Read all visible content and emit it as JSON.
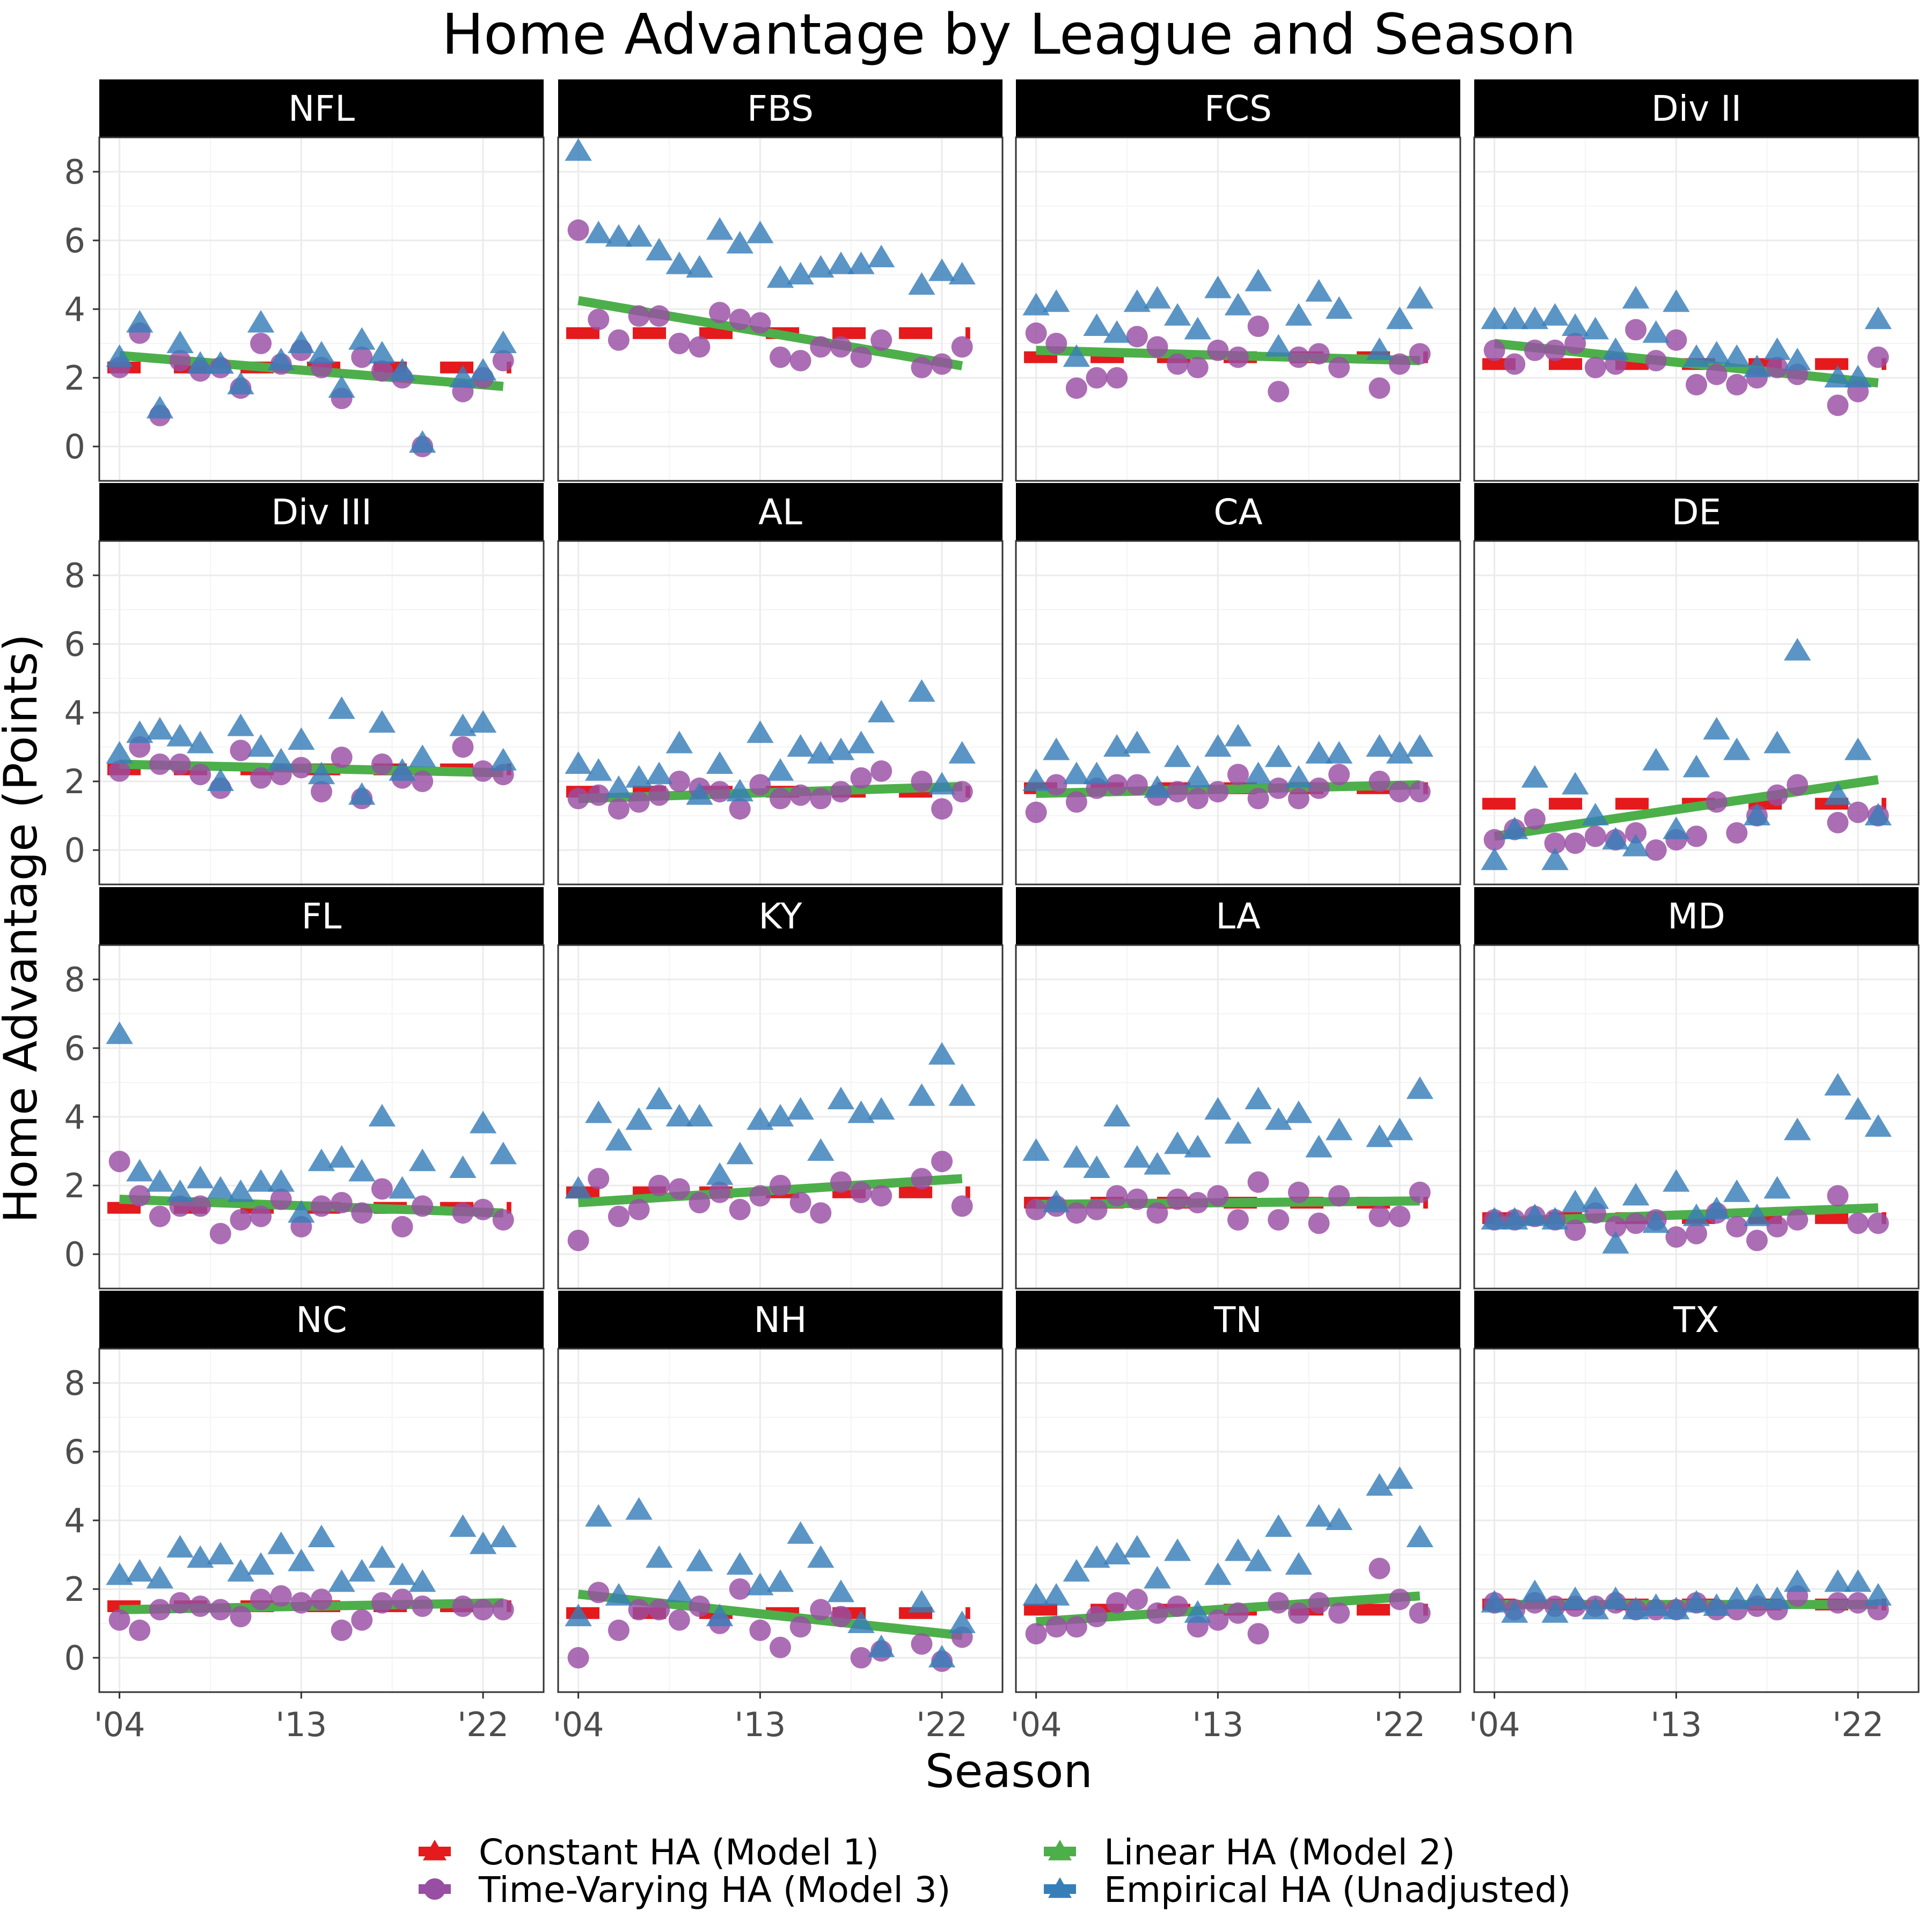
{
  "chart_data": {
    "type": "scatter",
    "title": "Home Advantage by League and Season",
    "xlabel": "Season",
    "ylabel": "Home Advantage (Points)",
    "x_range": [
      2003,
      2025
    ],
    "x_ticks": [
      {
        "value": 2004,
        "label": "'04"
      },
      {
        "value": 2013,
        "label": "'13"
      },
      {
        "value": 2022,
        "label": "'22"
      }
    ],
    "y_range": [
      -1,
      9
    ],
    "y_ticks": [
      0,
      2,
      4,
      6,
      8
    ],
    "grid": true,
    "facet_layout": "4x4",
    "legend_position": "bottom",
    "series": [
      {
        "key": "constant",
        "name": "Constant HA (Model 1)",
        "color": "#e41a1c",
        "shape": "dashed-line"
      },
      {
        "key": "linear",
        "name": "Linear HA (Model 2)",
        "color": "#4daf4a",
        "shape": "line"
      },
      {
        "key": "timevarying",
        "name": "Time-Varying HA (Model 3)",
        "color": "#984ea3",
        "shape": "circle"
      },
      {
        "key": "empirical",
        "name": "Empirical HA (Unadjusted)",
        "color": "#377eb8",
        "shape": "triangle"
      }
    ],
    "seasons": [
      2004,
      2005,
      2006,
      2007,
      2008,
      2009,
      2010,
      2011,
      2012,
      2013,
      2014,
      2015,
      2016,
      2017,
      2018,
      2019,
      2021,
      2022,
      2023
    ],
    "panels": [
      {
        "name": "NFL",
        "constant": 2.3,
        "linear": [
          2.65,
          1.75
        ],
        "timevarying": [
          2.3,
          3.3,
          0.9,
          2.5,
          2.2,
          2.3,
          1.7,
          3.0,
          2.4,
          2.8,
          2.3,
          1.4,
          2.6,
          2.2,
          2.0,
          0.0,
          1.6,
          2.0,
          2.5
        ],
        "empirical": [
          2.6,
          3.6,
          1.1,
          3.0,
          2.4,
          2.4,
          1.8,
          3.6,
          2.5,
          3.0,
          2.7,
          1.7,
          3.1,
          2.7,
          2.2,
          0.1,
          2.0,
          2.2,
          3.0
        ]
      },
      {
        "name": "FBS",
        "constant": 3.3,
        "linear": [
          4.25,
          2.35
        ],
        "timevarying": [
          6.3,
          3.7,
          3.1,
          3.8,
          3.8,
          3.0,
          2.9,
          3.9,
          3.7,
          3.6,
          2.6,
          2.5,
          2.9,
          2.9,
          2.6,
          3.1,
          2.3,
          2.4,
          2.9
        ],
        "empirical": [
          8.6,
          6.2,
          6.1,
          6.1,
          5.7,
          5.3,
          5.2,
          6.3,
          5.9,
          6.2,
          4.9,
          5.0,
          5.2,
          5.3,
          5.3,
          5.5,
          4.7,
          5.1,
          5.0
        ]
      },
      {
        "name": "FCS",
        "constant": 2.6,
        "linear": [
          2.8,
          2.5
        ],
        "timevarying": [
          3.3,
          3.0,
          1.7,
          2.0,
          2.0,
          3.2,
          2.9,
          2.4,
          2.3,
          2.8,
          2.6,
          3.5,
          1.6,
          2.6,
          2.7,
          2.3,
          1.7,
          2.4,
          2.7
        ],
        "empirical": [
          4.1,
          4.2,
          2.6,
          3.5,
          3.3,
          4.2,
          4.3,
          3.8,
          3.4,
          4.6,
          4.1,
          4.8,
          2.9,
          3.8,
          4.5,
          4.0,
          2.8,
          3.7,
          4.3
        ]
      },
      {
        "name": "Div II",
        "constant": 2.4,
        "linear": [
          3.0,
          1.85
        ],
        "timevarying": [
          2.8,
          2.4,
          2.8,
          2.8,
          3.0,
          2.3,
          2.4,
          3.4,
          2.5,
          3.1,
          1.8,
          2.1,
          1.8,
          2.0,
          2.3,
          2.1,
          1.2,
          1.6,
          2.6
        ],
        "empirical": [
          3.7,
          3.7,
          3.7,
          3.8,
          3.5,
          3.4,
          2.8,
          4.3,
          3.3,
          4.2,
          2.6,
          2.7,
          2.6,
          2.3,
          2.8,
          2.5,
          2.0,
          2.0,
          3.7
        ]
      },
      {
        "name": "Div III",
        "constant": 2.35,
        "linear": [
          2.5,
          2.25
        ],
        "timevarying": [
          2.3,
          3.0,
          2.5,
          2.5,
          2.2,
          1.8,
          2.9,
          2.1,
          2.2,
          2.4,
          1.7,
          2.7,
          1.5,
          2.5,
          2.1,
          2.0,
          3.0,
          2.3,
          2.2
        ],
        "empirical": [
          2.8,
          3.4,
          3.5,
          3.3,
          3.1,
          2.0,
          3.6,
          3.0,
          2.6,
          3.2,
          2.2,
          4.1,
          1.6,
          3.7,
          2.3,
          2.7,
          3.6,
          3.7,
          2.6
        ]
      },
      {
        "name": "AL",
        "constant": 1.7,
        "linear": [
          1.5,
          1.85
        ],
        "timevarying": [
          1.5,
          1.6,
          1.2,
          1.4,
          1.6,
          2.0,
          1.8,
          1.7,
          1.2,
          1.9,
          1.5,
          1.6,
          1.5,
          1.7,
          2.1,
          2.3,
          2.0,
          1.2,
          1.7
        ],
        "empirical": [
          2.5,
          2.3,
          1.8,
          2.1,
          2.2,
          3.1,
          1.6,
          2.5,
          1.7,
          3.4,
          2.3,
          3.0,
          2.8,
          2.9,
          3.1,
          4.0,
          4.6,
          1.9,
          2.8
        ]
      },
      {
        "name": "CA",
        "constant": 1.8,
        "linear": [
          1.65,
          1.9
        ],
        "timevarying": [
          1.1,
          1.9,
          1.4,
          1.8,
          1.9,
          1.9,
          1.6,
          1.7,
          1.5,
          1.7,
          2.2,
          1.5,
          1.8,
          1.5,
          1.8,
          2.2,
          2.0,
          1.7,
          1.7
        ],
        "empirical": [
          2.0,
          2.9,
          2.2,
          2.2,
          3.0,
          3.1,
          1.8,
          2.7,
          2.1,
          3.0,
          3.3,
          2.2,
          2.7,
          2.1,
          2.8,
          2.8,
          3.0,
          2.8,
          3.0
        ]
      },
      {
        "name": "DE",
        "constant": 1.35,
        "linear": [
          0.4,
          2.05
        ],
        "timevarying": [
          0.3,
          0.6,
          0.9,
          0.2,
          0.2,
          0.4,
          0.3,
          0.5,
          0.0,
          0.3,
          0.4,
          1.4,
          0.5,
          1.0,
          1.6,
          1.9,
          0.8,
          1.1,
          1.0
        ],
        "empirical": [
          -0.3,
          0.6,
          2.1,
          -0.3,
          1.9,
          1.0,
          0.3,
          0.1,
          2.6,
          0.6,
          2.4,
          3.5,
          2.9,
          1.0,
          3.1,
          5.8,
          1.6,
          2.9,
          1.0
        ]
      },
      {
        "name": "FL",
        "constant": 1.35,
        "linear": [
          1.6,
          1.2
        ],
        "timevarying": [
          2.7,
          1.7,
          1.1,
          1.4,
          1.4,
          0.6,
          1.0,
          1.1,
          1.6,
          0.8,
          1.4,
          1.5,
          1.2,
          1.9,
          0.8,
          1.4,
          1.2,
          1.3,
          1.0
        ],
        "empirical": [
          6.4,
          2.4,
          2.1,
          1.8,
          2.2,
          1.9,
          1.8,
          2.1,
          2.1,
          1.2,
          2.7,
          2.8,
          2.4,
          4.0,
          1.9,
          2.7,
          2.5,
          3.8,
          2.9
        ]
      },
      {
        "name": "KY",
        "constant": 1.8,
        "linear": [
          1.5,
          2.2
        ],
        "timevarying": [
          0.4,
          2.2,
          1.1,
          1.3,
          2.0,
          1.9,
          1.5,
          1.8,
          1.3,
          1.7,
          2.0,
          1.5,
          1.2,
          2.1,
          1.8,
          1.7,
          2.2,
          2.7,
          1.4
        ],
        "empirical": [
          1.9,
          4.1,
          3.3,
          3.9,
          4.5,
          4.0,
          4.0,
          2.3,
          2.9,
          3.9,
          4.0,
          4.2,
          3.0,
          4.5,
          4.1,
          4.2,
          4.6,
          5.8,
          4.6
        ]
      },
      {
        "name": "LA",
        "constant": 1.5,
        "linear": [
          1.45,
          1.55
        ],
        "timevarying": [
          1.3,
          1.4,
          1.2,
          1.3,
          1.7,
          1.6,
          1.2,
          1.6,
          1.5,
          1.7,
          1.0,
          2.1,
          1.0,
          1.8,
          0.9,
          1.7,
          1.1,
          1.1,
          1.8
        ],
        "empirical": [
          3.0,
          1.5,
          2.8,
          2.5,
          4.0,
          2.8,
          2.6,
          3.2,
          3.1,
          4.2,
          3.5,
          4.5,
          3.9,
          4.1,
          3.1,
          3.6,
          3.4,
          3.6,
          4.8
        ]
      },
      {
        "name": "MD",
        "constant": 1.05,
        "linear": [
          0.95,
          1.35
        ],
        "timevarying": [
          1.0,
          1.0,
          1.1,
          1.0,
          0.7,
          1.2,
          0.8,
          0.9,
          1.0,
          0.5,
          0.6,
          1.2,
          0.8,
          0.4,
          0.8,
          1.0,
          1.7,
          0.9,
          0.9
        ],
        "empirical": [
          1.0,
          1.0,
          1.1,
          1.0,
          1.5,
          1.6,
          0.3,
          1.7,
          0.9,
          2.1,
          1.1,
          1.3,
          1.8,
          1.1,
          1.9,
          3.6,
          4.9,
          4.2,
          3.7
        ]
      },
      {
        "name": "NC",
        "constant": 1.5,
        "linear": [
          1.4,
          1.6
        ],
        "timevarying": [
          1.1,
          0.8,
          1.4,
          1.6,
          1.5,
          1.4,
          1.2,
          1.7,
          1.8,
          1.6,
          1.7,
          0.8,
          1.1,
          1.6,
          1.7,
          1.5,
          1.5,
          1.4,
          1.4
        ],
        "empirical": [
          2.4,
          2.5,
          2.3,
          3.2,
          2.9,
          3.0,
          2.5,
          2.7,
          3.3,
          2.8,
          3.5,
          2.2,
          2.5,
          2.9,
          2.4,
          2.2,
          3.8,
          3.3,
          3.5
        ]
      },
      {
        "name": "NH",
        "constant": 1.3,
        "linear": [
          1.85,
          0.65
        ],
        "timevarying": [
          0.0,
          1.9,
          0.8,
          1.4,
          1.4,
          1.1,
          1.5,
          1.0,
          2.0,
          0.8,
          0.3,
          0.9,
          1.4,
          1.2,
          0.0,
          0.2,
          0.4,
          -0.1,
          0.6
        ],
        "empirical": [
          1.2,
          4.1,
          1.8,
          4.3,
          2.9,
          1.9,
          2.8,
          1.2,
          2.7,
          2.1,
          2.2,
          3.6,
          2.9,
          1.9,
          1.0,
          0.3,
          1.6,
          0.0,
          1.0
        ]
      },
      {
        "name": "TN",
        "constant": 1.4,
        "linear": [
          1.05,
          1.8
        ],
        "timevarying": [
          0.7,
          0.9,
          0.9,
          1.2,
          1.6,
          1.7,
          1.3,
          1.5,
          0.9,
          1.1,
          1.3,
          0.7,
          1.6,
          1.3,
          1.6,
          1.3,
          2.6,
          1.7,
          1.3
        ],
        "empirical": [
          1.8,
          1.8,
          2.5,
          2.9,
          3.0,
          3.2,
          2.3,
          3.1,
          1.3,
          2.4,
          3.1,
          2.8,
          3.8,
          2.7,
          4.1,
          4.0,
          5.0,
          5.2,
          3.5
        ]
      },
      {
        "name": "TX",
        "constant": 1.55,
        "linear": [
          1.55,
          1.55
        ],
        "timevarying": [
          1.6,
          1.4,
          1.6,
          1.5,
          1.5,
          1.5,
          1.6,
          1.4,
          1.4,
          1.4,
          1.6,
          1.4,
          1.4,
          1.5,
          1.4,
          1.8,
          1.6,
          1.6,
          1.4
        ],
        "empirical": [
          1.6,
          1.3,
          1.9,
          1.3,
          1.7,
          1.4,
          1.7,
          1.4,
          1.5,
          1.4,
          1.6,
          1.5,
          1.7,
          1.8,
          1.7,
          2.2,
          2.2,
          2.2,
          1.8
        ]
      }
    ]
  }
}
